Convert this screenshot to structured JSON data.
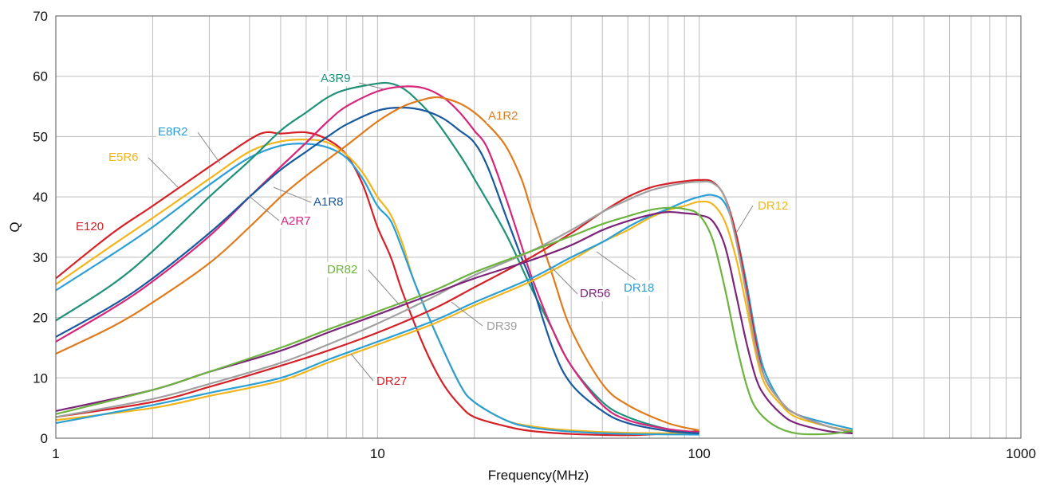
{
  "chart_data": {
    "type": "line",
    "xlabel": "Frequency(MHz)",
    "ylabel": "Q",
    "xscale": "log",
    "xlim": [
      1,
      1000
    ],
    "ylim": [
      0,
      70
    ],
    "grid": true,
    "x_ticks": [
      "1",
      "10",
      "100",
      "1000"
    ],
    "y_ticks": [
      "0",
      "10",
      "20",
      "30",
      "40",
      "50",
      "60",
      "70"
    ],
    "series": [
      {
        "name": "E120",
        "color": "#d42026",
        "points": [
          [
            1,
            26.5
          ],
          [
            1.5,
            34
          ],
          [
            2,
            38.5
          ],
          [
            3,
            45
          ],
          [
            4,
            49.5
          ],
          [
            4.5,
            50.7
          ],
          [
            5,
            50.5
          ],
          [
            6,
            50.7
          ],
          [
            7,
            49.5
          ],
          [
            8,
            47
          ],
          [
            9,
            42
          ],
          [
            10,
            35
          ],
          [
            11,
            30
          ],
          [
            12,
            24
          ],
          [
            14,
            15
          ],
          [
            16,
            9
          ],
          [
            18,
            5.5
          ],
          [
            20,
            3.5
          ],
          [
            25,
            2
          ],
          [
            30,
            1.2
          ],
          [
            40,
            0.7
          ],
          [
            60,
            0.5
          ],
          [
            80,
            0.8
          ],
          [
            100,
            1.2
          ]
        ]
      },
      {
        "name": "E5R6",
        "color": "#f2b51c",
        "points": [
          [
            1,
            25.5
          ],
          [
            1.5,
            32
          ],
          [
            2,
            36.5
          ],
          [
            3,
            43
          ],
          [
            4,
            47.5
          ],
          [
            5,
            49.2
          ],
          [
            6,
            49.5
          ],
          [
            7,
            49
          ],
          [
            8,
            47
          ],
          [
            9,
            44
          ],
          [
            10,
            40
          ],
          [
            11,
            37
          ],
          [
            12,
            32
          ],
          [
            13,
            26
          ],
          [
            15,
            18
          ],
          [
            18,
            9
          ],
          [
            20,
            6
          ],
          [
            25,
            3
          ],
          [
            30,
            2
          ],
          [
            40,
            1.3
          ],
          [
            60,
            0.9
          ],
          [
            100,
            0.8
          ]
        ]
      },
      {
        "name": "E8R2",
        "color": "#2a9fd6",
        "points": [
          [
            1,
            24.5
          ],
          [
            1.5,
            30.5
          ],
          [
            2,
            35
          ],
          [
            3,
            42
          ],
          [
            4,
            46.5
          ],
          [
            5,
            48.5
          ],
          [
            6,
            48.8
          ],
          [
            7,
            48.2
          ],
          [
            8,
            46.5
          ],
          [
            9,
            43
          ],
          [
            10,
            38.5
          ],
          [
            11,
            36
          ],
          [
            12,
            31
          ],
          [
            13,
            26
          ],
          [
            15,
            18
          ],
          [
            18,
            9
          ],
          [
            20,
            6
          ],
          [
            25,
            3
          ],
          [
            30,
            1.8
          ],
          [
            40,
            1.1
          ],
          [
            60,
            0.7
          ],
          [
            100,
            0.6
          ]
        ]
      },
      {
        "name": "A3R9",
        "color": "#1e9178",
        "points": [
          [
            1,
            19.5
          ],
          [
            1.5,
            25.5
          ],
          [
            2,
            31
          ],
          [
            3,
            40
          ],
          [
            4,
            46
          ],
          [
            5,
            51
          ],
          [
            6,
            54
          ],
          [
            7,
            56.5
          ],
          [
            8,
            57.8
          ],
          [
            10,
            58.8
          ],
          [
            11,
            58.8
          ],
          [
            12,
            58
          ],
          [
            13,
            56.5
          ],
          [
            15,
            53
          ],
          [
            18,
            47
          ],
          [
            20,
            43
          ],
          [
            25,
            34
          ],
          [
            30,
            25
          ],
          [
            35,
            18
          ],
          [
            40,
            12
          ],
          [
            50,
            6
          ],
          [
            60,
            3.5
          ],
          [
            80,
            1.5
          ],
          [
            100,
            1
          ]
        ]
      },
      {
        "name": "A2R7",
        "color": "#d6267a",
        "points": [
          [
            1,
            16
          ],
          [
            1.5,
            21.5
          ],
          [
            2,
            26
          ],
          [
            3,
            33.5
          ],
          [
            4,
            40
          ],
          [
            5,
            45
          ],
          [
            6,
            49
          ],
          [
            7,
            52.5
          ],
          [
            8,
            55
          ],
          [
            10,
            57.5
          ],
          [
            12,
            58.3
          ],
          [
            14,
            58
          ],
          [
            16,
            56.5
          ],
          [
            18,
            54
          ],
          [
            20,
            51
          ],
          [
            22,
            48
          ],
          [
            25,
            40
          ],
          [
            28,
            32
          ],
          [
            30,
            27
          ],
          [
            35,
            18
          ],
          [
            40,
            12
          ],
          [
            50,
            5.5
          ],
          [
            60,
            3
          ],
          [
            80,
            1.5
          ],
          [
            100,
            1
          ]
        ]
      },
      {
        "name": "A1R8",
        "color": "#17599e",
        "points": [
          [
            1,
            16.8
          ],
          [
            1.5,
            22
          ],
          [
            2,
            26.5
          ],
          [
            3,
            34
          ],
          [
            4,
            40
          ],
          [
            5,
            44.5
          ],
          [
            6,
            47.5
          ],
          [
            7,
            50
          ],
          [
            8,
            52
          ],
          [
            10,
            54.3
          ],
          [
            12,
            54.8
          ],
          [
            14,
            54.3
          ],
          [
            16,
            53
          ],
          [
            18,
            51
          ],
          [
            20,
            49
          ],
          [
            22,
            45
          ],
          [
            25,
            37
          ],
          [
            28,
            30
          ],
          [
            30,
            26
          ],
          [
            35,
            15
          ],
          [
            40,
            9
          ],
          [
            50,
            4.5
          ],
          [
            60,
            2.5
          ],
          [
            80,
            1.2
          ],
          [
            100,
            0.8
          ]
        ]
      },
      {
        "name": "A1R2",
        "color": "#e07b1d",
        "points": [
          [
            1,
            14
          ],
          [
            1.5,
            18.5
          ],
          [
            2,
            22.5
          ],
          [
            3,
            29
          ],
          [
            4,
            35
          ],
          [
            5,
            40
          ],
          [
            6,
            43.5
          ],
          [
            8,
            48.5
          ],
          [
            10,
            52.5
          ],
          [
            12,
            55
          ],
          [
            14,
            56.2
          ],
          [
            15,
            56.5
          ],
          [
            16,
            56.4
          ],
          [
            18,
            55.5
          ],
          [
            20,
            54
          ],
          [
            22,
            52
          ],
          [
            25,
            48.5
          ],
          [
            28,
            43
          ],
          [
            30,
            38
          ],
          [
            35,
            27
          ],
          [
            40,
            18
          ],
          [
            50,
            9
          ],
          [
            60,
            5.5
          ],
          [
            80,
            2.5
          ],
          [
            100,
            1.3
          ]
        ]
      },
      {
        "name": "DR12",
        "color": "#f2b51c",
        "points": [
          [
            1,
            3
          ],
          [
            2,
            5
          ],
          [
            3,
            7
          ],
          [
            5,
            9.5
          ],
          [
            7,
            12.5
          ],
          [
            10,
            15.5
          ],
          [
            15,
            19
          ],
          [
            20,
            22
          ],
          [
            30,
            26
          ],
          [
            40,
            29.5
          ],
          [
            50,
            32.5
          ],
          [
            60,
            34.5
          ],
          [
            70,
            36.5
          ],
          [
            80,
            37.8
          ],
          [
            90,
            38.5
          ],
          [
            100,
            39.2
          ],
          [
            110,
            38.8
          ],
          [
            120,
            36
          ],
          [
            130,
            30
          ],
          [
            140,
            22
          ],
          [
            150,
            14
          ],
          [
            160,
            9
          ],
          [
            180,
            5.5
          ],
          [
            200,
            3.5
          ],
          [
            250,
            2
          ],
          [
            300,
            1.2
          ]
        ]
      },
      {
        "name": "DR18",
        "color": "#2a9fd6",
        "points": [
          [
            1,
            2.5
          ],
          [
            2,
            5.5
          ],
          [
            3,
            7.5
          ],
          [
            5,
            10
          ],
          [
            7,
            13
          ],
          [
            10,
            16
          ],
          [
            15,
            19.5
          ],
          [
            20,
            22.5
          ],
          [
            30,
            26.5
          ],
          [
            40,
            30
          ],
          [
            50,
            32.5
          ],
          [
            60,
            35
          ],
          [
            70,
            36.8
          ],
          [
            80,
            38
          ],
          [
            90,
            39.2
          ],
          [
            100,
            40
          ],
          [
            110,
            40.3
          ],
          [
            120,
            39
          ],
          [
            130,
            34
          ],
          [
            140,
            26
          ],
          [
            150,
            17
          ],
          [
            160,
            11
          ],
          [
            180,
            6
          ],
          [
            200,
            4
          ],
          [
            250,
            2.5
          ],
          [
            300,
            1.5
          ]
        ]
      },
      {
        "name": "DR27",
        "color": "#d42026",
        "points": [
          [
            1,
            3.5
          ],
          [
            2,
            6
          ],
          [
            3,
            8.5
          ],
          [
            5,
            12
          ],
          [
            7,
            14.5
          ],
          [
            10,
            17.5
          ],
          [
            15,
            21.5
          ],
          [
            20,
            25
          ],
          [
            30,
            30
          ],
          [
            40,
            34
          ],
          [
            50,
            37.5
          ],
          [
            60,
            40
          ],
          [
            70,
            41.5
          ],
          [
            80,
            42.2
          ],
          [
            90,
            42.6
          ],
          [
            100,
            42.8
          ],
          [
            110,
            42.5
          ],
          [
            120,
            40
          ],
          [
            130,
            34
          ],
          [
            140,
            25
          ],
          [
            150,
            16
          ],
          [
            160,
            10
          ],
          [
            180,
            6
          ],
          [
            200,
            4
          ],
          [
            250,
            2
          ],
          [
            300,
            1
          ]
        ]
      },
      {
        "name": "DR39",
        "color": "#a0a0a0",
        "points": [
          [
            1,
            3.5
          ],
          [
            2,
            6.5
          ],
          [
            3,
            9
          ],
          [
            5,
            12.5
          ],
          [
            7,
            15.5
          ],
          [
            10,
            19
          ],
          [
            15,
            23.5
          ],
          [
            20,
            27
          ],
          [
            30,
            31
          ],
          [
            40,
            34.5
          ],
          [
            50,
            37.5
          ],
          [
            60,
            39.5
          ],
          [
            70,
            41
          ],
          [
            80,
            41.8
          ],
          [
            90,
            42.3
          ],
          [
            100,
            42.5
          ],
          [
            110,
            42.3
          ],
          [
            120,
            40
          ],
          [
            130,
            33
          ],
          [
            140,
            24
          ],
          [
            150,
            15
          ],
          [
            160,
            10
          ],
          [
            180,
            6
          ],
          [
            200,
            4
          ],
          [
            250,
            2
          ],
          [
            300,
            1
          ]
        ]
      },
      {
        "name": "DR56",
        "color": "#7b2479",
        "points": [
          [
            1,
            4.5
          ],
          [
            2,
            8
          ],
          [
            3,
            11
          ],
          [
            5,
            14.5
          ],
          [
            7,
            17.5
          ],
          [
            10,
            20.5
          ],
          [
            15,
            24
          ],
          [
            20,
            26.5
          ],
          [
            30,
            29.5
          ],
          [
            40,
            32
          ],
          [
            50,
            34.5
          ],
          [
            60,
            36
          ],
          [
            70,
            37
          ],
          [
            80,
            37.5
          ],
          [
            90,
            37.3
          ],
          [
            100,
            37
          ],
          [
            110,
            36
          ],
          [
            120,
            32
          ],
          [
            130,
            24
          ],
          [
            140,
            16
          ],
          [
            150,
            10
          ],
          [
            160,
            7
          ],
          [
            180,
            4
          ],
          [
            200,
            2.5
          ],
          [
            250,
            1.2
          ],
          [
            300,
            0.8
          ]
        ]
      },
      {
        "name": "DR82",
        "color": "#6db33f",
        "points": [
          [
            1,
            4
          ],
          [
            2,
            8
          ],
          [
            3,
            11
          ],
          [
            5,
            15
          ],
          [
            7,
            18
          ],
          [
            10,
            21
          ],
          [
            15,
            24.5
          ],
          [
            20,
            27.5
          ],
          [
            30,
            31
          ],
          [
            40,
            33.5
          ],
          [
            50,
            35.5
          ],
          [
            60,
            36.8
          ],
          [
            70,
            37.8
          ],
          [
            80,
            38.2
          ],
          [
            90,
            38
          ],
          [
            100,
            37
          ],
          [
            110,
            33
          ],
          [
            120,
            25
          ],
          [
            130,
            16
          ],
          [
            140,
            9
          ],
          [
            150,
            5
          ],
          [
            170,
            2.2
          ],
          [
            200,
            0.8
          ],
          [
            250,
            0.7
          ],
          [
            300,
            1.2
          ]
        ]
      }
    ]
  }
}
